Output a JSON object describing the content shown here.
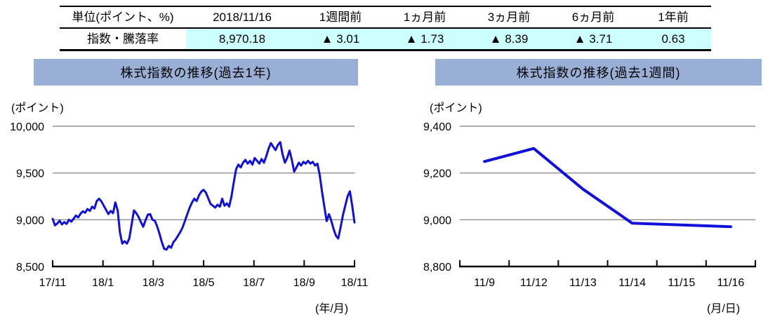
{
  "table": {
    "headers": [
      "単位(ポイント、%)",
      "2018/11/16",
      "1週間前",
      "1ヵ月前",
      "3ヵ月前",
      "6ヵ月前",
      "1年前"
    ],
    "row_label": "指数・騰落率",
    "values": [
      "8,970.18",
      "▲ 3.01",
      "▲ 1.73",
      "▲ 8.39",
      "▲ 3.71",
      "0.63"
    ],
    "highlight_color": "#CCFFFF"
  },
  "colors": {
    "banner_bg": "#9AAFD6",
    "line_blue": "#1010DC",
    "grid_gray": "#8F8F8F",
    "axis_black": "#000000",
    "highlight_cyan": "#CCFFFF"
  },
  "chart_data": [
    {
      "type": "line",
      "title": "株式指数の推移(過去1年)",
      "unit_label": "(ポイント)",
      "corner_label": "(年/月)",
      "legend": "none",
      "grid": true,
      "ylim": [
        8500,
        10000
      ],
      "ytick_values": [
        10000,
        9500,
        9000,
        8500
      ],
      "ytick_labels": [
        "10,000",
        "9,500",
        "9,000",
        "8,500"
      ],
      "xtick_labels": [
        "17/11",
        "18/1",
        "18/3",
        "18/5",
        "18/7",
        "18/9",
        "18/11"
      ],
      "x_label_mode": "tick",
      "line_color": "#1010DC",
      "values": [
        9010,
        8940,
        8960,
        8990,
        8950,
        8975,
        8955,
        9000,
        8980,
        9010,
        9045,
        9025,
        9065,
        9090,
        9075,
        9115,
        9095,
        9140,
        9120,
        9200,
        9225,
        9195,
        9150,
        9105,
        9060,
        9095,
        9070,
        9185,
        9100,
        8860,
        8745,
        8770,
        8745,
        8800,
        8950,
        9100,
        9070,
        9030,
        8975,
        8925,
        8995,
        9055,
        9060,
        9000,
        8990,
        8930,
        8850,
        8760,
        8690,
        8680,
        8720,
        8700,
        8760,
        8790,
        8830,
        8870,
        8920,
        8990,
        9060,
        9130,
        9185,
        9225,
        9200,
        9260,
        9300,
        9320,
        9290,
        9230,
        9170,
        9150,
        9130,
        9160,
        9140,
        9225,
        9150,
        9175,
        9140,
        9250,
        9400,
        9540,
        9590,
        9560,
        9610,
        9640,
        9600,
        9630,
        9590,
        9660,
        9630,
        9600,
        9650,
        9610,
        9680,
        9760,
        9820,
        9780,
        9745,
        9800,
        9830,
        9700,
        9610,
        9660,
        9740,
        9640,
        9515,
        9560,
        9610,
        9580,
        9620,
        9600,
        9630,
        9600,
        9620,
        9580,
        9600,
        9480,
        9300,
        9140,
        8985,
        9060,
        8990,
        8900,
        8830,
        8800,
        8920,
        9050,
        9150,
        9250,
        9305,
        9150,
        8970
      ]
    },
    {
      "type": "line",
      "title": "株式指数の推移(過去1週間)",
      "unit_label": "(ポイント)",
      "corner_label": "(月/日)",
      "legend": "none",
      "grid": true,
      "ylim": [
        8800,
        9400
      ],
      "ytick_values": [
        9400,
        9200,
        9000,
        8800
      ],
      "ytick_labels": [
        "9,400",
        "9,200",
        "9,000",
        "8,800"
      ],
      "categories": [
        "11/9",
        "11/12",
        "11/13",
        "11/14",
        "11/15",
        "11/16"
      ],
      "x_label_mode": "band",
      "line_color": "#1010DC",
      "values": [
        9249,
        9305,
        9131,
        8985,
        8978,
        8970
      ]
    }
  ]
}
